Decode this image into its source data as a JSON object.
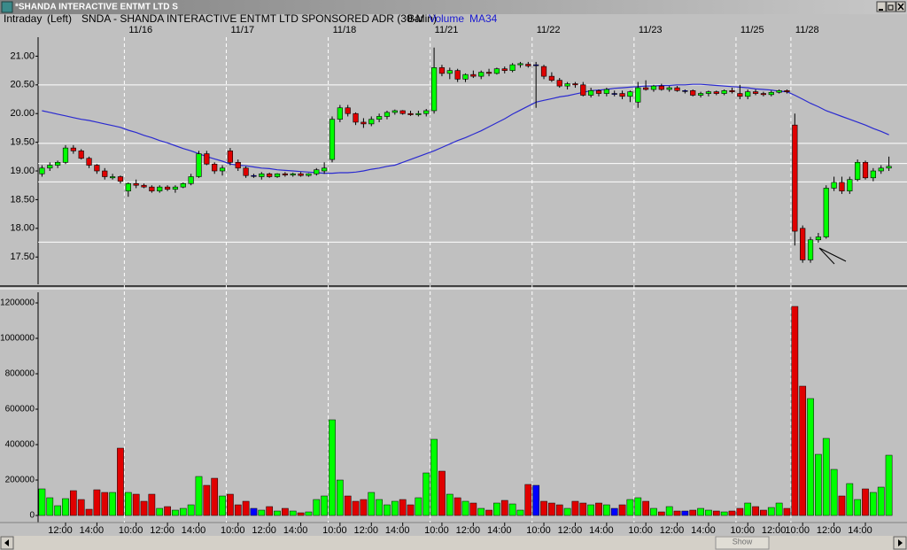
{
  "window": {
    "title": "*SHANDA INTERACTIVE ENTMT LTD S",
    "mode": "Intraday",
    "scale": "(Left)",
    "scrollbar_label": "Show"
  },
  "chart_data": [
    {
      "type": "candlestick",
      "title": "SNDA - SHANDA INTERACTIVE ENTMT LTD SPONSORED ADR (30-Min)",
      "style": "Bar",
      "categories": [
        null,
        null,
        null,
        null,
        null,
        null,
        null,
        null,
        null,
        null,
        null,
        "11/16",
        null,
        null,
        null,
        null,
        null,
        null,
        null,
        null,
        null,
        null,
        null,
        null,
        "11/17",
        null,
        null,
        null,
        null,
        null,
        null,
        null,
        null,
        null,
        null,
        null,
        null,
        "11/18",
        null,
        null,
        null,
        null,
        null,
        null,
        null,
        null,
        null,
        null,
        null,
        null,
        "11/21",
        null,
        null,
        null,
        null,
        null,
        null,
        null,
        null,
        null,
        null,
        null,
        null,
        "11/22",
        null,
        null,
        null,
        null,
        null,
        null,
        null,
        null,
        null,
        null,
        null,
        null,
        "11/23",
        null,
        null,
        null,
        null,
        null,
        null,
        null,
        null,
        null,
        null,
        null,
        null,
        "11/25",
        null,
        null,
        null,
        null,
        null,
        null,
        "11/28",
        null,
        null,
        null,
        null,
        null,
        null,
        null,
        null,
        null,
        null,
        null,
        null
      ],
      "open": [
        18.95,
        19.05,
        19.1,
        19.15,
        19.4,
        19.35,
        19.22,
        19.1,
        19.0,
        18.88,
        18.9,
        18.65,
        18.78,
        18.75,
        18.72,
        18.65,
        18.72,
        18.68,
        18.72,
        18.78,
        18.9,
        19.3,
        19.12,
        19.0,
        19.35,
        19.15,
        19.05,
        18.92,
        18.9,
        18.95,
        18.9,
        18.95,
        18.93,
        18.95,
        18.92,
        18.95,
        19.0,
        19.2,
        19.9,
        20.1,
        20.0,
        19.85,
        19.82,
        19.9,
        19.95,
        20.02,
        20.05,
        20.0,
        19.98,
        20.0,
        20.05,
        20.8,
        20.7,
        20.75,
        20.6,
        20.68,
        20.65,
        20.72,
        20.7,
        20.78,
        20.75,
        20.85,
        20.86,
        20.85,
        20.82,
        20.65,
        20.58,
        20.48,
        20.52,
        20.5,
        20.32,
        20.4,
        20.35,
        20.35,
        20.35,
        20.3,
        20.2,
        20.45,
        20.42,
        20.48,
        20.42,
        20.45,
        20.4,
        20.4,
        20.32,
        20.35,
        20.38,
        20.35,
        20.4,
        20.35,
        20.3,
        20.38,
        20.35,
        20.33,
        20.37,
        20.4,
        19.8,
        18.0,
        17.45,
        17.8,
        17.85,
        18.7,
        18.8,
        18.65,
        18.85,
        19.15,
        18.88,
        19.0,
        19.05
      ],
      "high": [
        19.1,
        19.15,
        19.18,
        19.45,
        19.45,
        19.38,
        19.25,
        19.12,
        19.05,
        18.95,
        18.92,
        18.8,
        18.85,
        18.78,
        18.75,
        18.75,
        18.75,
        18.75,
        18.8,
        18.95,
        19.35,
        19.35,
        19.15,
        19.1,
        19.4,
        19.2,
        19.08,
        18.95,
        18.98,
        18.97,
        18.96,
        18.98,
        18.97,
        18.98,
        18.96,
        19.05,
        19.15,
        19.95,
        20.15,
        20.15,
        20.02,
        19.92,
        19.95,
        20.0,
        20.05,
        20.07,
        20.06,
        20.05,
        20.05,
        20.08,
        21.15,
        20.85,
        20.8,
        20.78,
        20.7,
        20.75,
        20.75,
        20.78,
        20.8,
        20.82,
        20.88,
        20.9,
        20.9,
        20.9,
        20.85,
        20.72,
        20.62,
        20.55,
        20.55,
        20.55,
        20.45,
        20.42,
        20.45,
        20.4,
        20.4,
        20.4,
        20.55,
        20.58,
        20.5,
        20.52,
        20.48,
        20.48,
        20.42,
        20.42,
        20.38,
        20.4,
        20.4,
        20.42,
        20.45,
        20.5,
        20.42,
        20.42,
        20.38,
        20.4,
        20.42,
        20.42,
        20.0,
        18.05,
        17.85,
        17.92,
        18.75,
        18.9,
        18.9,
        18.9,
        19.2,
        19.18,
        19.05,
        19.1,
        19.25
      ],
      "low": [
        18.9,
        19.0,
        19.05,
        19.12,
        19.3,
        19.2,
        19.05,
        18.95,
        18.85,
        18.85,
        18.78,
        18.55,
        18.7,
        18.7,
        18.62,
        18.62,
        18.65,
        18.62,
        18.7,
        18.75,
        18.88,
        19.1,
        18.95,
        18.92,
        19.1,
        19.0,
        18.88,
        18.88,
        18.85,
        18.88,
        18.88,
        18.9,
        18.9,
        18.9,
        18.9,
        18.92,
        18.95,
        19.15,
        19.85,
        19.95,
        19.8,
        19.75,
        19.78,
        19.85,
        19.9,
        19.98,
        19.98,
        19.96,
        19.95,
        19.95,
        20.0,
        20.65,
        20.6,
        20.55,
        20.55,
        20.62,
        20.6,
        20.65,
        20.68,
        20.7,
        20.72,
        20.8,
        20.8,
        20.1,
        20.6,
        20.55,
        20.45,
        20.42,
        20.45,
        20.3,
        20.28,
        20.3,
        20.3,
        20.3,
        20.25,
        20.2,
        20.1,
        20.4,
        20.38,
        20.4,
        20.38,
        20.38,
        20.35,
        20.3,
        20.28,
        20.3,
        20.32,
        20.32,
        20.35,
        20.25,
        20.25,
        20.32,
        20.3,
        20.3,
        20.35,
        20.35,
        17.7,
        17.4,
        17.4,
        17.75,
        17.82,
        18.65,
        18.6,
        18.6,
        18.82,
        18.85,
        18.82,
        18.95,
        19.0
      ],
      "close": [
        19.05,
        19.1,
        19.15,
        19.4,
        19.35,
        19.22,
        19.1,
        19.0,
        18.9,
        18.9,
        18.82,
        18.78,
        18.75,
        18.72,
        18.65,
        18.72,
        18.68,
        18.72,
        18.78,
        18.9,
        19.3,
        19.12,
        19.0,
        19.05,
        19.15,
        19.05,
        18.92,
        18.92,
        18.95,
        18.9,
        18.95,
        18.93,
        18.95,
        18.92,
        18.95,
        19.02,
        19.05,
        19.9,
        20.1,
        20.0,
        19.85,
        19.82,
        19.9,
        19.95,
        20.02,
        20.05,
        20.0,
        19.98,
        20.0,
        20.05,
        20.8,
        20.7,
        20.75,
        20.6,
        20.68,
        20.65,
        20.72,
        20.7,
        20.78,
        20.75,
        20.85,
        20.87,
        20.83,
        20.85,
        20.65,
        20.58,
        20.48,
        20.52,
        20.5,
        20.32,
        20.4,
        20.35,
        20.42,
        20.35,
        20.3,
        20.38,
        20.45,
        20.42,
        20.48,
        20.42,
        20.45,
        20.4,
        20.4,
        20.32,
        20.35,
        20.38,
        20.35,
        20.4,
        20.38,
        20.3,
        20.38,
        20.35,
        20.33,
        20.37,
        20.4,
        20.38,
        17.95,
        17.45,
        17.8,
        17.85,
        18.7,
        18.8,
        18.65,
        18.85,
        19.15,
        18.88,
        19.0,
        19.05,
        19.08
      ],
      "up_color": "#00ff00",
      "down_color": "#e00000",
      "flat_color": "#0000ff",
      "series": [
        {
          "name": "MA34",
          "color": "#2a2ad0",
          "values": [
            20.05,
            20.02,
            19.99,
            19.96,
            19.93,
            19.9,
            19.88,
            19.85,
            19.82,
            19.79,
            19.76,
            19.71,
            19.67,
            19.62,
            19.58,
            19.53,
            19.49,
            19.44,
            19.39,
            19.35,
            19.3,
            19.25,
            19.21,
            19.17,
            19.12,
            19.1,
            19.09,
            19.07,
            19.05,
            19.04,
            19.02,
            19.01,
            19.0,
            18.99,
            18.98,
            18.97,
            18.96,
            18.96,
            18.97,
            18.97,
            18.98,
            19.0,
            19.03,
            19.05,
            19.08,
            19.1,
            19.15,
            19.2,
            19.25,
            19.3,
            19.35,
            19.41,
            19.47,
            19.53,
            19.58,
            19.64,
            19.7,
            19.77,
            19.84,
            19.91,
            19.99,
            20.06,
            20.13,
            20.2,
            20.23,
            20.26,
            20.29,
            20.31,
            20.34,
            20.37,
            20.4,
            20.41,
            20.42,
            20.44,
            20.45,
            20.46,
            20.47,
            20.48,
            20.48,
            20.49,
            20.49,
            20.5,
            20.5,
            20.51,
            20.51,
            20.5,
            20.49,
            20.48,
            20.47,
            20.46,
            20.45,
            20.43,
            20.42,
            20.41,
            20.39,
            20.38,
            20.32,
            20.25,
            20.18,
            20.12,
            20.05,
            20.0,
            19.95,
            19.9,
            19.85,
            19.8,
            19.74,
            19.69,
            19.63
          ]
        }
      ],
      "levels": [
        20.5,
        19.48,
        19.13,
        18.81,
        17.76
      ],
      "level_color": "#ffffff",
      "ylim": [
        17.04,
        21.3
      ],
      "yticks": [
        {
          "value": 17.5,
          "label": "17.50"
        },
        {
          "value": 18,
          "label": "18.00"
        },
        {
          "value": 18.5,
          "label": "18.50"
        },
        {
          "value": 19,
          "label": "19.00"
        },
        {
          "value": 19.5,
          "label": "19.50"
        },
        {
          "value": 20,
          "label": "20.00"
        },
        {
          "value": 20.5,
          "label": "20.50"
        },
        {
          "value": 21,
          "label": "21.00"
        }
      ]
    },
    {
      "type": "bar",
      "categories": [
        null,
        null,
        null,
        "12:00",
        null,
        null,
        null,
        "14:00",
        null,
        null,
        null,
        null,
        "10:00",
        null,
        null,
        null,
        "12:00",
        null,
        null,
        null,
        "14:00",
        null,
        null,
        null,
        null,
        "10:00",
        null,
        null,
        null,
        "12:00",
        null,
        null,
        null,
        "14:00",
        null,
        null,
        null,
        null,
        "10:00",
        null,
        null,
        null,
        "12:00",
        null,
        null,
        null,
        "14:00",
        null,
        null,
        null,
        null,
        "10:00",
        null,
        null,
        null,
        "12:00",
        null,
        null,
        null,
        "14:00",
        null,
        null,
        null,
        null,
        "10:00",
        null,
        null,
        null,
        "12:00",
        null,
        null,
        null,
        "14:00",
        null,
        null,
        null,
        null,
        "10:00",
        null,
        null,
        null,
        "12:00",
        null,
        null,
        null,
        "14:00",
        null,
        null,
        null,
        null,
        "10:00",
        null,
        null,
        null,
        "12:00",
        null,
        null,
        "10:00",
        null,
        null,
        null,
        "12:00",
        null,
        null,
        null,
        "14:00",
        null,
        null,
        null
      ],
      "series": [
        {
          "name": "Volume",
          "values": [
            150000,
            100000,
            55000,
            95000,
            140000,
            90000,
            35000,
            145000,
            130000,
            130000,
            380000,
            130000,
            120000,
            80000,
            120000,
            40000,
            50000,
            30000,
            40000,
            60000,
            220000,
            170000,
            210000,
            110000,
            120000,
            60000,
            80000,
            40000,
            30000,
            50000,
            25000,
            40000,
            25000,
            15000,
            20000,
            90000,
            110000,
            540000,
            200000,
            110000,
            80000,
            90000,
            130000,
            90000,
            60000,
            80000,
            90000,
            60000,
            100000,
            240000,
            430000,
            250000,
            120000,
            100000,
            80000,
            70000,
            40000,
            30000,
            70000,
            85000,
            65000,
            30000,
            175000,
            170000,
            80000,
            70000,
            60000,
            40000,
            80000,
            70000,
            60000,
            70000,
            60000,
            40000,
            60000,
            90000,
            100000,
            80000,
            40000,
            20000,
            50000,
            25000,
            25000,
            30000,
            40000,
            30000,
            25000,
            20000,
            25000,
            40000,
            70000,
            50000,
            30000,
            45000,
            70000,
            40000,
            1180000,
            730000,
            660000,
            345000,
            435000,
            260000,
            110000,
            180000,
            90000,
            150000,
            130000,
            160000,
            340000
          ]
        }
      ],
      "ylim": [
        -40000,
        1260000
      ],
      "yticks": [
        0,
        200000,
        400000,
        600000,
        800000,
        1000000,
        1200000
      ]
    }
  ]
}
